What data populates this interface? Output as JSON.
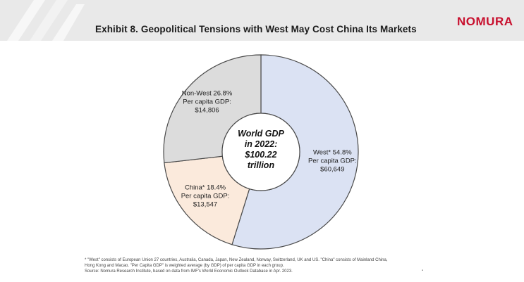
{
  "header": {
    "title": "Exhibit 8. Geopolitical Tensions with West May Cost China Its Markets",
    "logo": "NOMURA"
  },
  "chart_data": {
    "type": "pie",
    "style": "donut",
    "center_label": [
      "World GDP",
      "in 2022:",
      "$100.22",
      "trillion"
    ],
    "slices": [
      {
        "label": "West*",
        "percent": 54.8,
        "subtitle": "Per capita GDP:",
        "per_capita_gdp": "$60,649",
        "color": "#dbe2f3"
      },
      {
        "label": "China*",
        "percent": 18.4,
        "subtitle": "Per capita GDP:",
        "per_capita_gdp": "$13,547",
        "color": "#fbeadc"
      },
      {
        "label": "Non-West",
        "percent": 26.8,
        "subtitle": "Per capita GDP:",
        "per_capita_gdp": "$14,806",
        "color": "#dcdcdc"
      }
    ],
    "border_color": "#4a4a4a"
  },
  "footnote": {
    "lines": [
      "* \"West\" consists of European Union 27 countries, Australia, Canada, Japan, New Zealand, Norway, Switzerland, UK and US. \"China\" consists of Mainland China,",
      "Hong Kong and Macao. \"Per Capita GDP\" is weighted average (by GDP) of per capita GDP in each group.",
      "Source: Nomura Research Institute, based on data from IMF's World Economic Outlook Database in Apr. 2023."
    ]
  },
  "page_number": "▪"
}
